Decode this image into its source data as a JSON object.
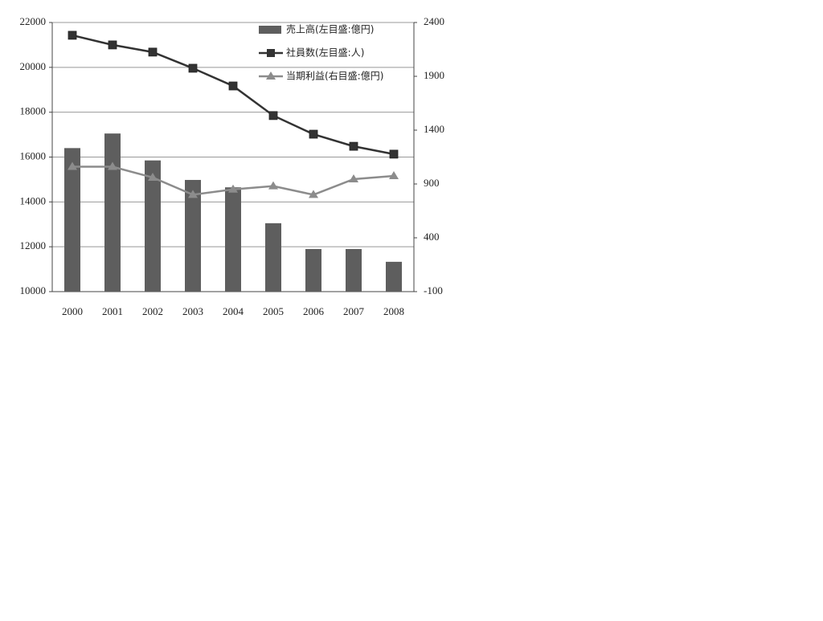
{
  "chart_data": {
    "type": "bar",
    "categories": [
      "2000",
      "2001",
      "2002",
      "2003",
      "2004",
      "2005",
      "2006",
      "2007",
      "2008"
    ],
    "series": [
      {
        "name": "売上高(左目盛:億円)",
        "type": "bar",
        "color": "#5e5e5e",
        "values": [
          16400,
          17050,
          15850,
          14980,
          14650,
          13050,
          11900,
          11900,
          11330
        ]
      },
      {
        "name": "社員数(左目盛:人)",
        "type": "line",
        "marker": "square",
        "color": "#333333",
        "values": [
          21430,
          21000,
          20680,
          19960,
          19170,
          17850,
          17020,
          16480,
          16130
        ]
      },
      {
        "name": "当期利益(右目盛:億円)",
        "type": "line",
        "marker": "triangle",
        "axis": "y2",
        "color": "#8c8c8c",
        "values": [
          1060,
          1060,
          960,
          800,
          850,
          880,
          800,
          945,
          975
        ]
      }
    ],
    "ylim": [
      10000,
      22000
    ],
    "yticks": [
      10000,
      12000,
      14000,
      16000,
      18000,
      20000,
      22000
    ],
    "y2lim": [
      -100,
      2400
    ],
    "y2ticks": [
      -100,
      400,
      900,
      1400,
      1900,
      2400
    ],
    "grid": true,
    "legend": "top-right"
  }
}
